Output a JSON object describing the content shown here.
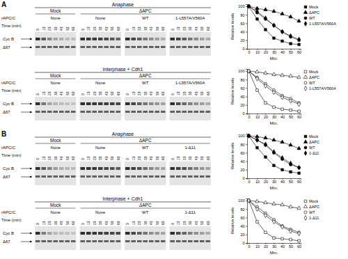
{
  "panels": [
    {
      "letter": "A",
      "gels": [
        {
          "condition": "Anaphase",
          "row_label": "rAPC/C",
          "time_label": "Time (min)",
          "times": [
            0,
            10,
            20,
            30,
            40,
            50,
            60
          ],
          "bands": [
            "Cyc B",
            "Δ67"
          ],
          "depletions": [
            "Mock",
            "ΔAPC"
          ],
          "groups": [
            "None",
            "None",
            "WT",
            "1-L557A/V560A"
          ]
        },
        {
          "condition": "Interphase + Cdh1",
          "row_label": "rAPC/C",
          "time_label": "Time (min)",
          "times": [
            0,
            10,
            20,
            30,
            40,
            50,
            60
          ],
          "bands": [
            "Cyc B",
            "Δ67"
          ],
          "depletions": [
            "Mock",
            "ΔAPC"
          ],
          "groups": [
            "None",
            "None",
            "WT",
            "1-L557A/V560A"
          ]
        }
      ]
    },
    {
      "letter": "B",
      "gels": [
        {
          "condition": "Anaphase",
          "row_label": "rAPC/C",
          "time_label": "Time (min)",
          "times": [
            0,
            10,
            20,
            30,
            40,
            50,
            60
          ],
          "bands": [
            "Cyc B",
            "Δ67"
          ],
          "depletions": [
            "Mock",
            "ΔAPC"
          ],
          "groups": [
            "None",
            "None",
            "WT",
            "1-Δ11"
          ]
        },
        {
          "condition": "Interphase + Cdh1",
          "row_label": "rAPC/C",
          "time_label": "Time (min)",
          "times": [
            0,
            10,
            20,
            30,
            40,
            50,
            60
          ],
          "bands": [
            "Cyc B",
            "Δ67"
          ],
          "depletions": [
            "Mock",
            "ΔAPC"
          ],
          "groups": [
            "None",
            "None",
            "WT",
            "1-Δ11"
          ]
        }
      ]
    }
  ],
  "chart_data": [
    {
      "type": "line",
      "x": [
        0,
        10,
        20,
        30,
        40,
        50,
        60
      ],
      "xlim": [
        -2,
        62
      ],
      "xticks": [
        0,
        10,
        20,
        30,
        40,
        50,
        60
      ],
      "ylim": [
        0,
        105
      ],
      "yticks": [
        0,
        20,
        40,
        60,
        80,
        100
      ],
      "x_label": "Min.",
      "y_label": "Relative levels",
      "legend": "right",
      "series": [
        {
          "name": "Mock",
          "color": "#000000",
          "marker": "square",
          "values": [
            100,
            70,
            45,
            25,
            18,
            12,
            10
          ]
        },
        {
          "name": "ΔAPC",
          "color": "#000000",
          "marker": "triangle",
          "values": [
            100,
            95,
            92,
            88,
            82,
            75,
            65
          ]
        },
        {
          "name": "WT",
          "color": "#000000",
          "marker": "circle",
          "values": [
            100,
            85,
            70,
            55,
            40,
            28,
            20
          ]
        },
        {
          "name": "1-L557A/V560A",
          "color": "#000000",
          "marker": "diamond",
          "values": [
            100,
            88,
            72,
            55,
            40,
            30,
            22
          ]
        }
      ]
    },
    {
      "type": "line",
      "x": [
        0,
        10,
        20,
        30,
        40,
        50,
        60
      ],
      "xlim": [
        -2,
        62
      ],
      "xticks": [
        0,
        10,
        20,
        30,
        40,
        50,
        60
      ],
      "ylim": [
        0,
        105
      ],
      "yticks": [
        0,
        20,
        40,
        60,
        80,
        100
      ],
      "x_label": "Min.",
      "y_label": "Relative levels",
      "legend": "right",
      "series": [
        {
          "name": "Mock",
          "color": "#000000",
          "marker": "square-open",
          "values": [
            100,
            55,
            25,
            15,
            10,
            8,
            5
          ]
        },
        {
          "name": "ΔAPC",
          "color": "#000000",
          "marker": "triangle-open",
          "values": [
            100,
            98,
            95,
            92,
            90,
            88,
            85
          ]
        },
        {
          "name": "WT",
          "color": "#000000",
          "marker": "circle-open",
          "values": [
            100,
            85,
            70,
            55,
            42,
            35,
            25
          ]
        },
        {
          "name": "1-L557A/V560A",
          "color": "#000000",
          "marker": "diamond-open",
          "values": [
            100,
            82,
            65,
            50,
            38,
            30,
            22
          ]
        }
      ]
    },
    {
      "type": "line",
      "x": [
        0,
        10,
        20,
        30,
        40,
        50,
        60
      ],
      "xlim": [
        -2,
        62
      ],
      "xticks": [
        0,
        10,
        20,
        30,
        40,
        50,
        60
      ],
      "ylim": [
        0,
        105
      ],
      "yticks": [
        0,
        20,
        40,
        60,
        80,
        100
      ],
      "x_label": "Min.",
      "y_label": "Relative levels",
      "legend": "right",
      "series": [
        {
          "name": "Mock",
          "color": "#000000",
          "marker": "square",
          "values": [
            100,
            72,
            50,
            30,
            20,
            15,
            12
          ]
        },
        {
          "name": "ΔAPC",
          "color": "#000000",
          "marker": "triangle",
          "values": [
            100,
            98,
            95,
            90,
            85,
            78,
            70
          ]
        },
        {
          "name": "WT",
          "color": "#000000",
          "marker": "circle",
          "values": [
            100,
            90,
            78,
            60,
            45,
            32,
            25
          ]
        },
        {
          "name": "1-Δ11",
          "color": "#000000",
          "marker": "diamond",
          "values": [
            100,
            90,
            80,
            62,
            48,
            35,
            25
          ]
        }
      ]
    },
    {
      "type": "line",
      "x": [
        0,
        10,
        20,
        30,
        40,
        50,
        60
      ],
      "xlim": [
        -2,
        62
      ],
      "xticks": [
        0,
        10,
        20,
        30,
        40,
        50,
        60
      ],
      "ylim": [
        0,
        105
      ],
      "yticks": [
        0,
        20,
        40,
        60,
        80,
        100
      ],
      "x_label": "Min.",
      "y_label": "Relative levels",
      "legend": "right",
      "series": [
        {
          "name": "Mock",
          "color": "#000000",
          "marker": "square-open",
          "values": [
            100,
            50,
            25,
            12,
            10,
            8,
            5
          ]
        },
        {
          "name": "ΔAPC",
          "color": "#000000",
          "marker": "triangle-open",
          "values": [
            100,
            98,
            95,
            92,
            90,
            85,
            82
          ]
        },
        {
          "name": "WT",
          "color": "#000000",
          "marker": "circle-open",
          "values": [
            100,
            85,
            70,
            55,
            40,
            32,
            25
          ]
        },
        {
          "name": "1-Δ11",
          "color": "#000000",
          "marker": "diamond-open",
          "values": [
            100,
            80,
            65,
            50,
            38,
            28,
            22
          ]
        }
      ]
    }
  ]
}
